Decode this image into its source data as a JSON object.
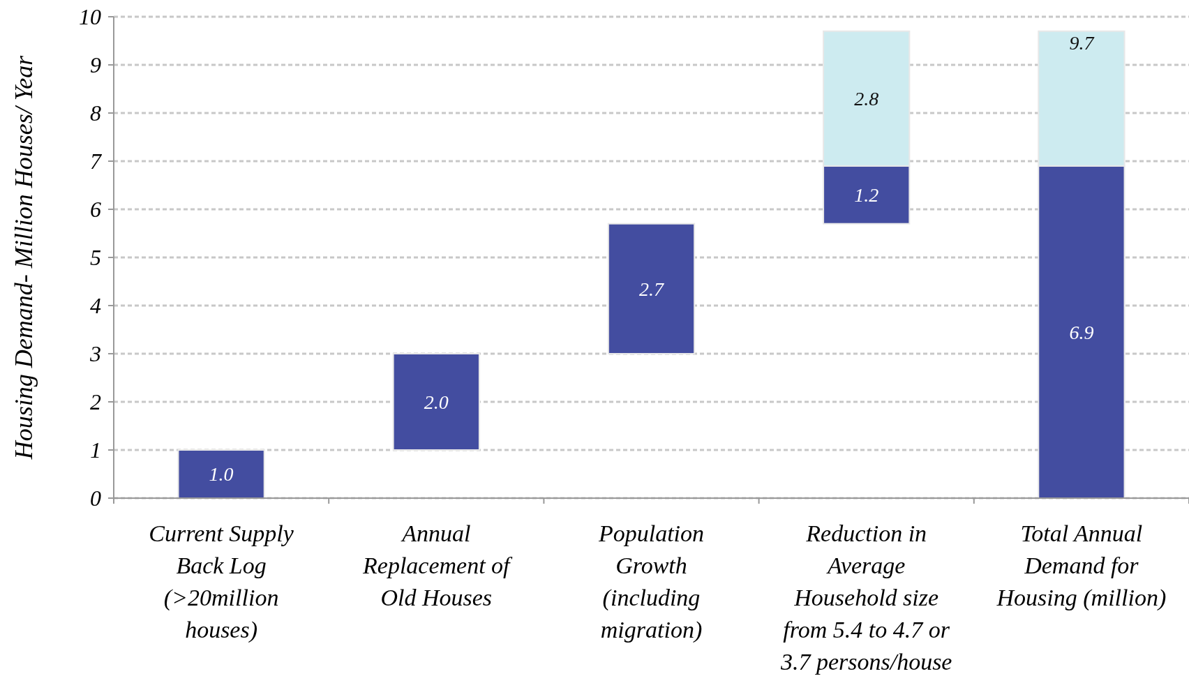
{
  "chart_data": {
    "type": "bar",
    "ylabel": "Housing Demand- Million Houses/ Year",
    "categories": [
      "Current Supply Back Log (>20million houses)",
      "Annual Replacement of Old Houses",
      "Population Growth (including migration)",
      "Reduction in Average Household size from 5.4 to 4.7 or 3.7 persons/house",
      "Total Annual Demand for Housing (million)"
    ],
    "series": [
      {
        "color": "#434da0",
        "values": [
          1.0,
          2.0,
          2.7,
          1.2,
          6.9
        ],
        "base": [
          0,
          1,
          3,
          5.7,
          0
        ],
        "value_labels": [
          "1.0",
          "2.0",
          "2.7",
          "1.2",
          "6.9"
        ]
      },
      {
        "color": "#cdebf0",
        "values": [
          null,
          null,
          null,
          2.8,
          2.8
        ],
        "base": [
          null,
          null,
          null,
          6.9,
          6.9
        ],
        "value_labels": [
          null,
          null,
          null,
          "2.8",
          "9.7"
        ]
      }
    ],
    "ylim": [
      0,
      10
    ],
    "yticks": [
      0,
      1,
      2,
      3,
      4,
      5,
      6,
      7,
      8,
      9,
      10
    ],
    "grid": "y",
    "line_style": "dashed"
  }
}
